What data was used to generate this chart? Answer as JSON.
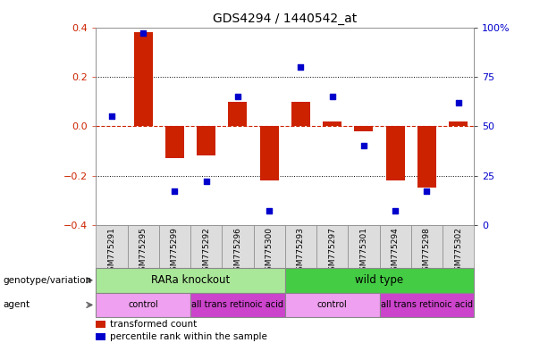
{
  "title": "GDS4294 / 1440542_at",
  "samples": [
    "GSM775291",
    "GSM775295",
    "GSM775299",
    "GSM775292",
    "GSM775296",
    "GSM775300",
    "GSM775293",
    "GSM775297",
    "GSM775301",
    "GSM775294",
    "GSM775298",
    "GSM775302"
  ],
  "bar_values": [
    0.0,
    0.38,
    -0.13,
    -0.12,
    0.1,
    -0.22,
    0.1,
    0.02,
    -0.02,
    -0.22,
    -0.25,
    0.02
  ],
  "scatter_values": [
    55,
    97,
    17,
    22,
    65,
    7,
    80,
    65,
    40,
    7,
    17,
    62
  ],
  "bar_color": "#cc2200",
  "scatter_color": "#0000cc",
  "hline_color": "#cc2200",
  "dotted_line_color": "#000000",
  "ylim_left": [
    -0.4,
    0.4
  ],
  "ylim_right": [
    0,
    100
  ],
  "yticks_left": [
    -0.4,
    -0.2,
    0.0,
    0.2,
    0.4
  ],
  "ytick_right_labels": [
    "0",
    "25",
    "50",
    "75",
    "100%"
  ],
  "yticks_right": [
    0,
    25,
    50,
    75,
    100
  ],
  "dotted_yticks": [
    0.2,
    -0.2
  ],
  "genotype_groups": [
    {
      "label": "RARa knockout",
      "start": 0,
      "end": 6,
      "color": "#aae899"
    },
    {
      "label": "wild type",
      "start": 6,
      "end": 12,
      "color": "#44cc44"
    }
  ],
  "agent_groups": [
    {
      "label": "control",
      "start": 0,
      "end": 3,
      "color": "#f0a0f0"
    },
    {
      "label": "all trans retinoic acid",
      "start": 3,
      "end": 6,
      "color": "#cc44cc"
    },
    {
      "label": "control",
      "start": 6,
      "end": 9,
      "color": "#f0a0f0"
    },
    {
      "label": "all trans retinoic acid",
      "start": 9,
      "end": 12,
      "color": "#cc44cc"
    }
  ],
  "row_labels": [
    "genotype/variation",
    "agent"
  ],
  "legend_items": [
    {
      "label": "transformed count",
      "color": "#cc2200"
    },
    {
      "label": "percentile rank within the sample",
      "color": "#0000cc"
    }
  ],
  "bar_width": 0.6,
  "scatter_size": 14,
  "plot_bg_color": "#ffffff",
  "sample_box_color": "#dddddd",
  "sample_box_edge": "#888888"
}
